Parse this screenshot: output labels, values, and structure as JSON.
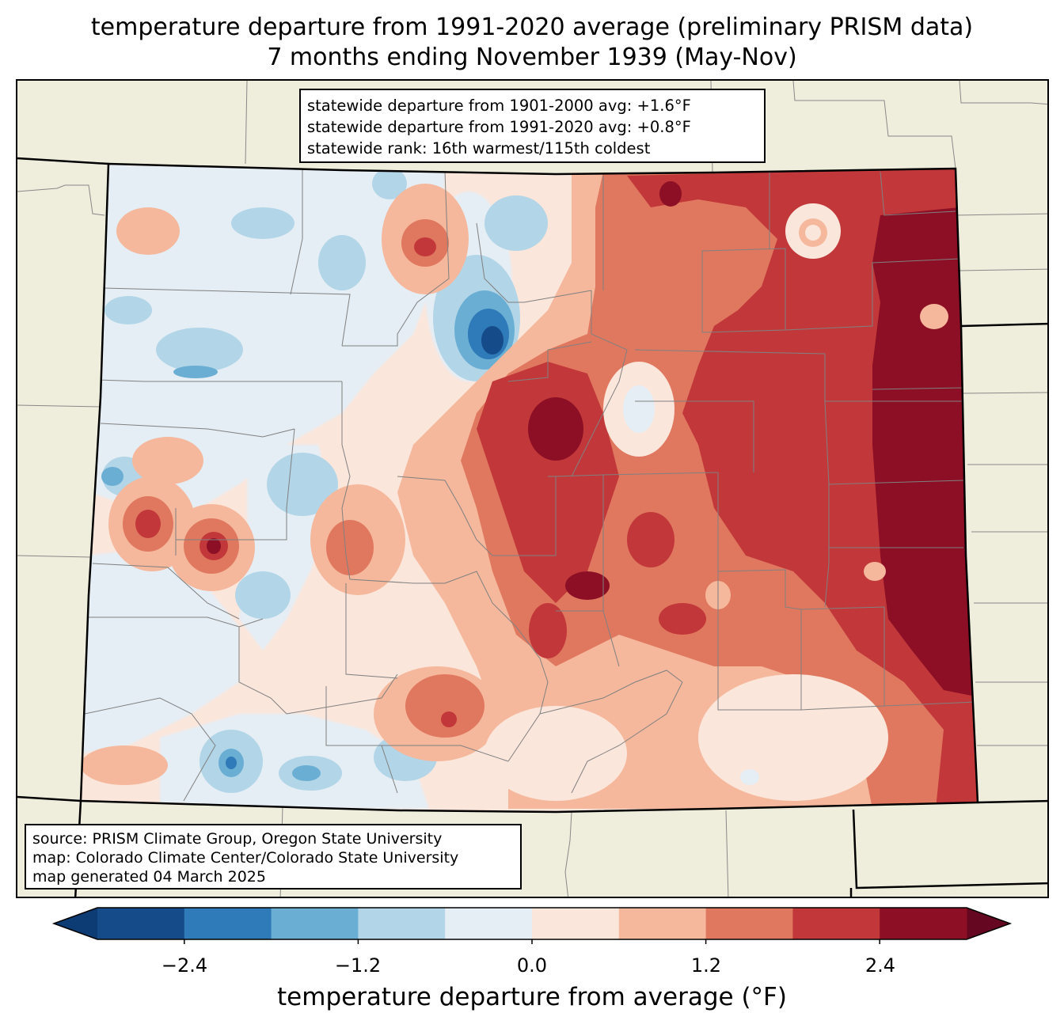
{
  "title_line1": "temperature departure from 1991-2020 average (preliminary PRISM data)",
  "title_line2": "7 months ending November 1939 (May-Nov)",
  "stats": [
    "statewide departure from 1901-2000 avg: +1.6°F",
    "statewide departure from 1991-2020 avg: +0.8°F",
    "statewide rank: 16th warmest/115th coldest"
  ],
  "source": [
    "source: PRISM Climate Group, Oregon State University",
    "map: Colorado Climate Center/Colorado State University",
    "map generated 04 March 2025"
  ],
  "colorbar": {
    "title": "temperature departure from average (°F)",
    "ticks": [
      "−2.4",
      "−1.2",
      "0.0",
      "1.2",
      "2.4"
    ],
    "levels": [
      -3.0,
      -2.4,
      -1.8,
      -1.2,
      -0.6,
      0.0,
      0.6,
      1.2,
      1.8,
      2.4,
      3.0
    ],
    "colors": [
      "#0d3b74",
      "#154b88",
      "#2f7ab8",
      "#6aaed4",
      "#b2d5e7",
      "#e5eef5",
      "#fbe6db",
      "#f5b89c",
      "#e0785f",
      "#c2383a",
      "#8c0f25",
      "#650720"
    ]
  },
  "map_colors": {
    "land": "#efeddc",
    "border": "#000000",
    "county": "#808080"
  }
}
